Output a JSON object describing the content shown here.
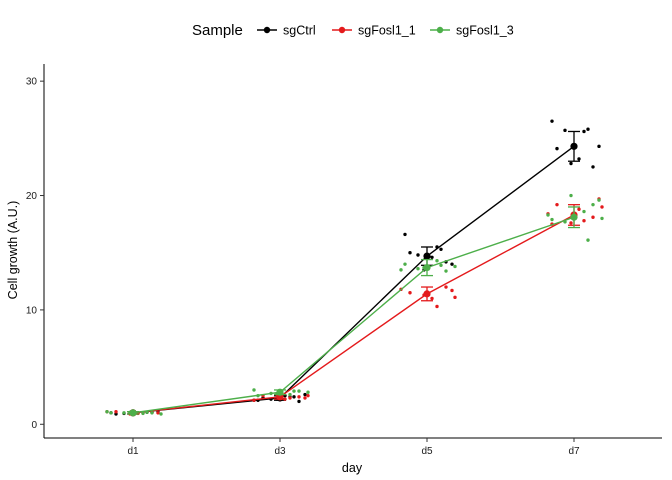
{
  "chart_data": {
    "type": "line",
    "xlabel": "day",
    "ylabel": "Cell growth (A.U.)",
    "categories": [
      "d1",
      "d3",
      "d5",
      "d7"
    ],
    "ylim": [
      -1.2,
      31.5
    ],
    "yticks": [
      0,
      10,
      20,
      30
    ],
    "grid": false,
    "legend": {
      "title": "Sample",
      "position": "top"
    },
    "series": [
      {
        "name": "sgCtrl",
        "color": "#000000",
        "mean": [
          1.0,
          2.3,
          14.7,
          24.3
        ],
        "error": [
          0.1,
          0.2,
          0.8,
          1.3
        ],
        "points": [
          [
            1.0,
            1.05,
            0.95,
            1.1,
            0.9,
            1.0,
            1.05,
            0.98
          ],
          [
            2.1,
            2.4,
            2.2,
            2.6,
            2.3,
            2.5,
            2.0,
            2.2,
            2.4,
            2.1
          ],
          [
            16.6,
            15.3,
            14.8,
            14.0,
            15.0,
            14.6,
            14.2,
            13.5,
            15.5
          ],
          [
            26.5,
            25.8,
            25.7,
            24.3,
            24.1,
            23.2,
            22.5,
            22.8,
            25.6
          ]
        ]
      },
      {
        "name": "sgFosl1_1",
        "color": "#e41a1c",
        "mean": [
          1.0,
          2.4,
          11.4,
          18.3
        ],
        "error": [
          0.1,
          0.2,
          0.6,
          0.9
        ],
        "points": [
          [
            1.0,
            1.1,
            0.95,
            1.05,
            0.9,
            1.0,
            1.1
          ],
          [
            2.3,
            2.5,
            2.2,
            2.4,
            2.6,
            2.3,
            2.1,
            2.5
          ],
          [
            11.7,
            11.5,
            11.0,
            12.0,
            11.3,
            10.3,
            11.8,
            11.1
          ],
          [
            19.7,
            19.2,
            18.8,
            18.1,
            17.6,
            17.8,
            18.4,
            19.0,
            17.5
          ]
        ]
      },
      {
        "name": "sgFosl1_3",
        "color": "#4daf4a",
        "mean": [
          1.0,
          2.8,
          13.7,
          18.1
        ],
        "error": [
          0.1,
          0.2,
          0.7,
          0.9
        ],
        "points": [
          [
            1.0,
            1.05,
            0.95,
            1.1,
            0.9,
            1.0,
            1.05,
            1.0
          ],
          [
            2.9,
            2.7,
            2.6,
            3.0,
            2.8,
            2.5,
            2.9,
            2.7
          ],
          [
            13.4,
            13.7,
            14.3,
            13.5,
            13.8,
            14.0,
            13.9,
            13.6
          ],
          [
            19.2,
            20.0,
            18.6,
            18.3,
            18.0,
            17.9,
            16.1,
            17.7,
            19.6
          ]
        ]
      }
    ]
  }
}
